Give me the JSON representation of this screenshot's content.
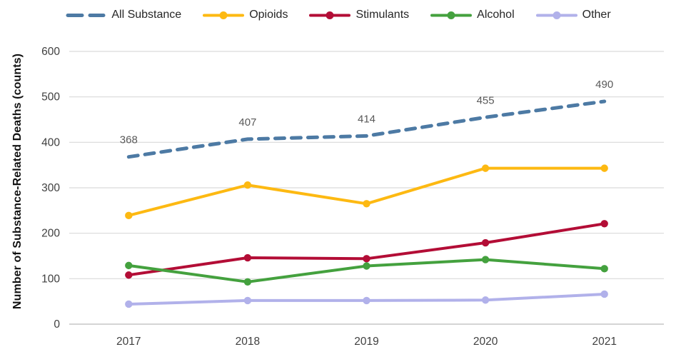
{
  "chart_data": {
    "type": "line",
    "title": "",
    "xlabel": "",
    "ylabel": "Number of Substance-Related Deaths (counts)",
    "categories": [
      "2017",
      "2018",
      "2019",
      "2020",
      "2021"
    ],
    "ylim": [
      0,
      600
    ],
    "y_ticks": [
      0,
      100,
      200,
      300,
      400,
      500,
      600
    ],
    "grid": true,
    "legend_position": "top",
    "series": [
      {
        "name": "All Substance",
        "color": "#4d7aa4",
        "style": "dashed",
        "marker": false,
        "show_labels": true,
        "values": [
          368,
          407,
          414,
          455,
          490
        ]
      },
      {
        "name": "Opioids",
        "color": "#fdb912",
        "style": "solid",
        "marker": true,
        "show_labels": false,
        "values": [
          239,
          306,
          265,
          343,
          343
        ]
      },
      {
        "name": "Stimulants",
        "color": "#b30d36",
        "style": "solid",
        "marker": true,
        "show_labels": false,
        "values": [
          108,
          146,
          144,
          179,
          221
        ]
      },
      {
        "name": "Alcohol",
        "color": "#44a13e",
        "style": "solid",
        "marker": true,
        "show_labels": false,
        "values": [
          129,
          93,
          128,
          142,
          122
        ]
      },
      {
        "name": "Other",
        "color": "#b1b1ea",
        "style": "solid",
        "marker": true,
        "show_labels": false,
        "values": [
          44,
          52,
          52,
          53,
          66
        ]
      }
    ],
    "colors": {
      "grid": "#d9d9d9",
      "axis_line": "#c6c6c6",
      "tick_label": "#3f3f3f",
      "data_label": "#595959",
      "legend_text": "#262626",
      "background": "#ffffff"
    }
  }
}
